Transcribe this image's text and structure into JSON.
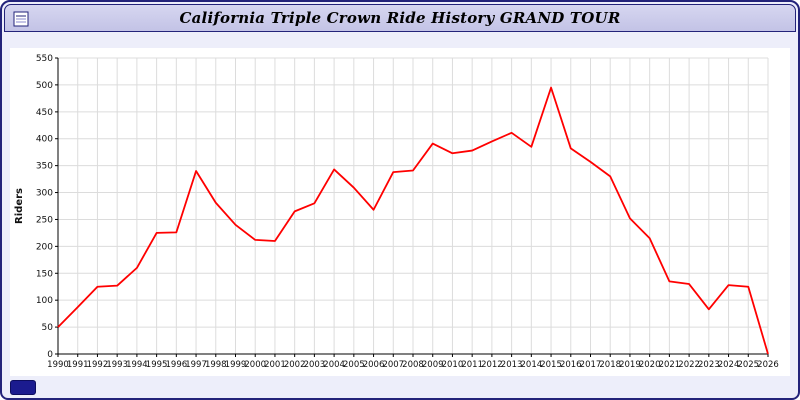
{
  "window": {
    "title": "California Triple Crown Ride History GRAND TOUR"
  },
  "chart_data": {
    "type": "line",
    "title": "California Triple Crown Ride History GRAND TOUR",
    "xlabel": "",
    "ylabel": "Riders",
    "ylim": [
      0,
      550
    ],
    "ytick_step": 50,
    "grid": true,
    "legend_position": "none",
    "line_color": "#ff0000",
    "categories": [
      "1990",
      "1991",
      "1992",
      "1993",
      "1994",
      "1995",
      "1996",
      "1997",
      "1998",
      "1999",
      "2000",
      "2001",
      "2002",
      "2003",
      "2004",
      "2005",
      "2006",
      "2007",
      "2008",
      "2009",
      "2010",
      "2011",
      "2012",
      "2013",
      "2014",
      "2015",
      "2016",
      "2017",
      "2018",
      "2019",
      "2020",
      "2021",
      "2022",
      "2023",
      "2024",
      "2025",
      "2026"
    ],
    "series": [
      {
        "name": "Riders",
        "values": [
          50,
          87,
          125,
          127,
          160,
          225,
          226,
          340,
          281,
          240,
          212,
          210,
          265,
          280,
          343,
          309,
          268,
          338,
          341,
          391,
          373,
          378,
          395,
          411,
          385,
          495,
          382,
          357,
          330,
          252,
          215,
          135,
          130,
          83,
          128,
          125,
          0
        ]
      }
    ]
  }
}
